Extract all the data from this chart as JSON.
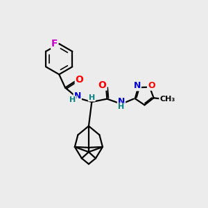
{
  "background_color": "#ececec",
  "line_color": "#000000",
  "bond_width": 1.6,
  "atom_colors": {
    "F": "#cc00cc",
    "O": "#ff0000",
    "N": "#0000cc",
    "H": "#008080",
    "C": "#000000"
  },
  "font_size": 9,
  "figsize": [
    3.0,
    3.0
  ],
  "dpi": 100
}
